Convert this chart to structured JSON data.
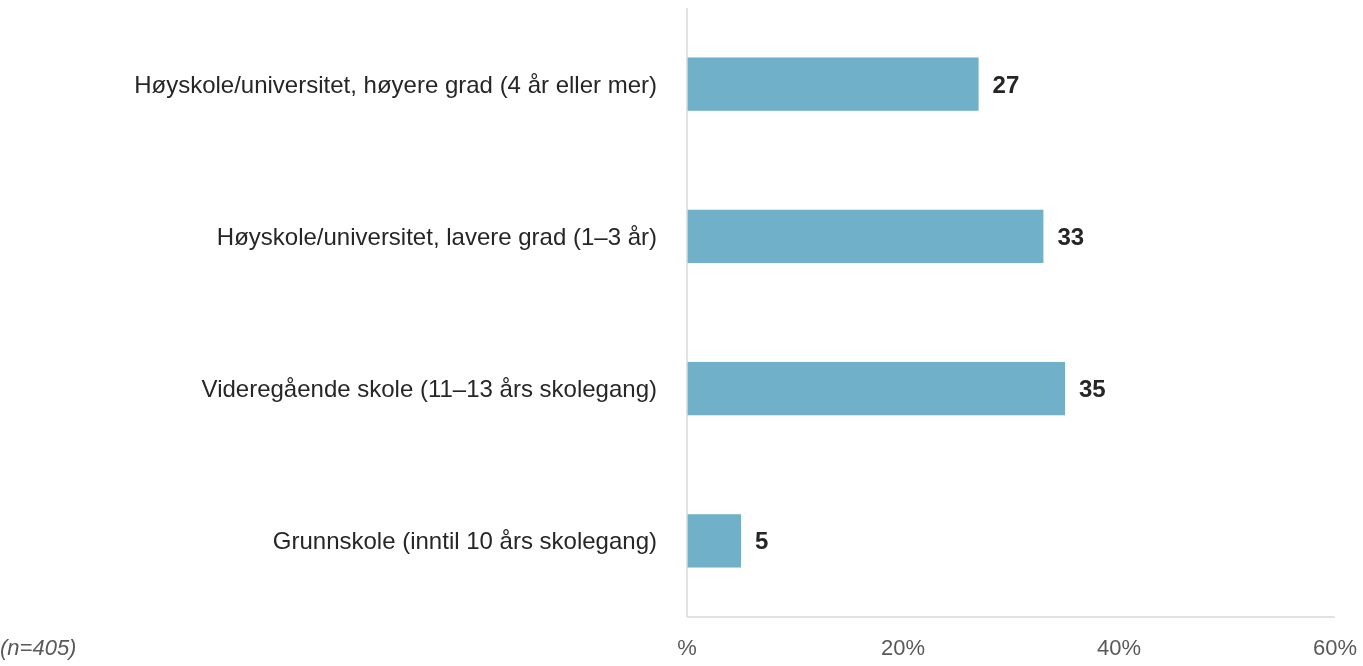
{
  "chart_data": {
    "type": "bar",
    "orientation": "horizontal",
    "categories": [
      "Høyskole/universitet, høyere grad (4 år eller mer)",
      "Høyskole/universitet, lavere grad (1–3 år)",
      "Videregående skole (11–13 års skolegang)",
      "Grunnskole (inntil 10 års skolegang)"
    ],
    "values": [
      27,
      33,
      35,
      5
    ],
    "color": "#70b1c9",
    "xlim": [
      0,
      60
    ],
    "xticks": [
      {
        "value": 0,
        "label": "%"
      },
      {
        "value": 20,
        "label": "20%"
      },
      {
        "value": 40,
        "label": "40%"
      },
      {
        "value": 60,
        "label": "60%"
      }
    ],
    "data_labels": true,
    "grid": false,
    "annotations": [
      "(n=405)"
    ]
  }
}
